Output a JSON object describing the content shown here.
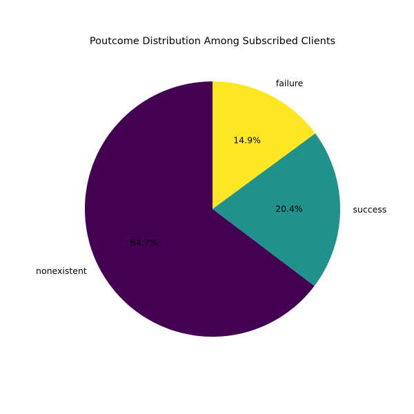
{
  "chart_data": {
    "type": "pie",
    "title": "Poutcome Distribution Among Subscribed Clients",
    "slices": [
      {
        "label": "failure",
        "value": 14.9,
        "pct_label": "14.9%",
        "color": "#fde725"
      },
      {
        "label": "success",
        "value": 20.4,
        "pct_label": "20.4%",
        "color": "#21918c"
      },
      {
        "label": "nonexistent",
        "value": 64.7,
        "pct_label": "64.7%",
        "color": "#440154"
      }
    ],
    "start_angle_deg": 90,
    "direction": "clockwise",
    "legend": "none"
  }
}
